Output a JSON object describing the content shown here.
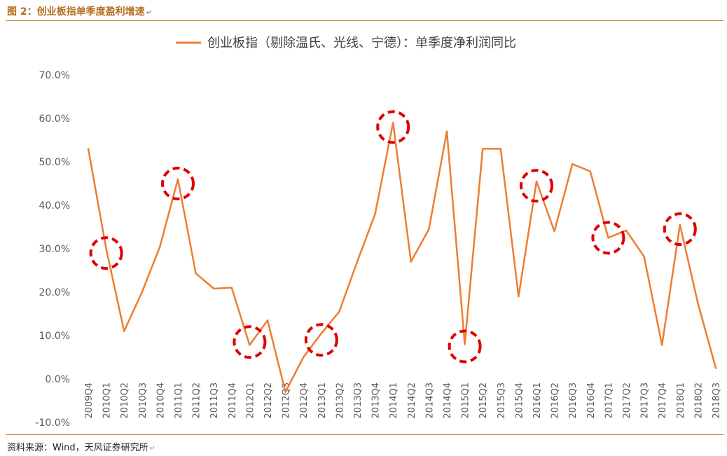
{
  "figure": {
    "title": "图 2：创业板指单季度盈利增速",
    "source": "资料来源：Wind，天风证券研究所",
    "return_mark": "↵"
  },
  "colors": {
    "line": "#ED7D31",
    "circle": "#E00000",
    "accent": "#C58A3E",
    "title": "#B36D1D"
  },
  "chart_data": {
    "type": "line",
    "legend_position": "top-center",
    "grid": false,
    "categories": [
      "2009Q4",
      "2010Q1",
      "2010Q2",
      "2010Q3",
      "2010Q4",
      "2011Q1",
      "2011Q2",
      "2011Q3",
      "2011Q4",
      "2012Q1",
      "2012Q2",
      "2012Q3",
      "2012Q4",
      "2013Q1",
      "2013Q2",
      "2013Q3",
      "2013Q4",
      "2014Q1",
      "2014Q2",
      "2014Q3",
      "2014Q4",
      "2015Q1",
      "2015Q2",
      "2015Q3",
      "2015Q4",
      "2016Q1",
      "2016Q2",
      "2016Q3",
      "2016Q4",
      "2017Q1",
      "2017Q2",
      "2017Q3",
      "2017Q4",
      "2018Q1",
      "2018Q2",
      "2018Q3"
    ],
    "series": [
      {
        "name": "创业板指（剔除温氏、光线、宁德）：单季度净利润同比",
        "values": [
          53.0,
          30.0,
          11.0,
          20.0,
          30.5,
          46.0,
          24.3,
          20.8,
          21.0,
          7.8,
          13.5,
          -3.0,
          5.0,
          10.5,
          15.5,
          27.0,
          38.0,
          59.0,
          27.0,
          34.5,
          57.0,
          8.0,
          53.0,
          53.0,
          19.0,
          45.5,
          34.0,
          49.5,
          47.8,
          32.5,
          34.2,
          28.2,
          7.8,
          35.5,
          17.5,
          2.5
        ]
      }
    ],
    "ylim": [
      -10,
      70
    ],
    "yticks": [
      -10,
      0,
      10,
      20,
      30,
      40,
      50,
      60,
      70
    ],
    "ytick_labels": [
      "-10.0%",
      "0.0%",
      "10.0%",
      "20.0%",
      "30.0%",
      "40.0%",
      "50.0%",
      "60.0%",
      "70.0%"
    ],
    "annotations": {
      "circled_categories": [
        "2010Q1",
        "2011Q1",
        "2012Q1",
        "2013Q1",
        "2014Q1",
        "2015Q1",
        "2016Q1",
        "2017Q1",
        "2018Q1"
      ],
      "circled_values": [
        29.0,
        45.0,
        8.5,
        9.0,
        58.0,
        7.5,
        44.5,
        32.5,
        34.5
      ]
    }
  }
}
